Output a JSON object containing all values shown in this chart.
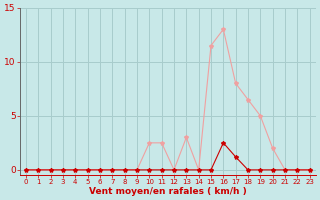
{
  "x": [
    0,
    1,
    2,
    3,
    4,
    5,
    6,
    7,
    8,
    9,
    10,
    11,
    12,
    13,
    14,
    15,
    16,
    17,
    18,
    19,
    20,
    21,
    22,
    23
  ],
  "rafales": [
    0,
    0,
    0,
    0,
    0,
    0,
    0,
    0,
    0,
    0,
    2.5,
    2.5,
    0,
    3,
    0,
    11.5,
    13,
    8,
    6.5,
    5,
    2,
    0,
    0,
    0
  ],
  "moyen": [
    0,
    0,
    0,
    0,
    0,
    0,
    0,
    0,
    0,
    0,
    0,
    0,
    0,
    0,
    0,
    0,
    2.5,
    1.2,
    0,
    0,
    0,
    0,
    0,
    0
  ],
  "bg_color": "#c8e8e8",
  "grid_color": "#a8cccc",
  "line_color_rafales": "#f0a0a0",
  "line_color_moyen": "#cc0000",
  "xlabel": "Vent moyen/en rafales ( km/h )",
  "ylim_min": -0.5,
  "ylim_max": 15.0,
  "yticks": [
    0,
    5,
    10,
    15
  ],
  "xticks": [
    0,
    1,
    2,
    3,
    4,
    5,
    6,
    7,
    8,
    9,
    10,
    11,
    12,
    13,
    14,
    15,
    16,
    17,
    18,
    19,
    20,
    21,
    22,
    23
  ],
  "xlabel_fontsize": 6.5,
  "xlabel_fontweight": "bold",
  "tick_fontsize_x": 5.0,
  "tick_fontsize_y": 6.5,
  "tick_color": "#cc0000",
  "left_spine_color": "#666666",
  "bottom_spine_color": "#cc0000"
}
